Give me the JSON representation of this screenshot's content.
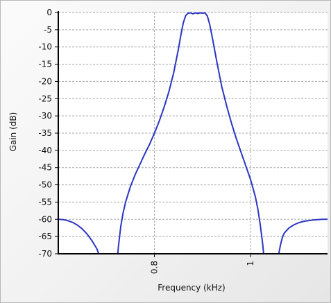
{
  "chart_data": {
    "type": "line",
    "title": "",
    "xlabel": "Frequency (kHz)",
    "ylabel": "Gain (dB)",
    "xlim": [
      0.6,
      1.16
    ],
    "ylim": [
      -70,
      0
    ],
    "x_ticks": [
      0.8,
      1.0
    ],
    "x_tick_labels": [
      "0.8",
      "1"
    ],
    "y_ticks": [
      0,
      -5,
      -10,
      -15,
      -20,
      -25,
      -30,
      -35,
      -40,
      -45,
      -50,
      -55,
      -60,
      -65,
      -70
    ],
    "y_tick_labels": [
      "0",
      "-5",
      "-10",
      "-15",
      "-20",
      "-25",
      "-30",
      "-35",
      "-40",
      "-45",
      "-50",
      "-55",
      "-60",
      "-65",
      "-70"
    ],
    "grid": true,
    "legend": "none",
    "line_color": "#2b35c4",
    "series": [
      {
        "name": "",
        "segments": [
          {
            "x": [
              0.6,
              0.61,
              0.62,
              0.63,
              0.64,
              0.65,
              0.66,
              0.67,
              0.68,
              0.685,
              0.69,
              0.695,
              0.698
            ],
            "y": [
              -60.0,
              -60.1,
              -60.4,
              -60.9,
              -61.7,
              -62.8,
              -64.3,
              -66.2,
              -68.5,
              -70.3,
              -72.5,
              -75.5,
              -78.0
            ]
          },
          {
            "x": [
              0.718,
              0.72,
              0.725,
              0.73,
              0.735,
              0.74,
              0.75,
              0.76,
              0.77,
              0.78,
              0.79,
              0.8,
              0.81,
              0.82,
              0.83,
              0.84,
              0.85,
              0.855,
              0.86,
              0.865,
              0.87,
              0.875,
              0.88,
              0.885,
              0.89,
              0.895,
              0.9,
              0.905,
              0.91,
              0.915,
              0.92,
              0.93,
              0.94,
              0.95,
              0.96,
              0.97,
              0.98,
              0.99,
              1.0,
              1.01,
              1.015,
              1.02,
              1.025,
              1.03,
              1.032
            ],
            "y": [
              -80.0,
              -76.0,
              -68.0,
              -62.0,
              -58.0,
              -55.0,
              -50.5,
              -47.0,
              -44.0,
              -41.0,
              -38.2,
              -35.0,
              -31.5,
              -27.5,
              -23.0,
              -17.5,
              -10.5,
              -6.5,
              -3.0,
              -0.9,
              -0.2,
              -0.1,
              -0.4,
              -0.1,
              -0.3,
              -0.1,
              -0.2,
              -0.1,
              -1.0,
              -3.5,
              -7.0,
              -14.5,
              -21.5,
              -27.0,
              -32.0,
              -36.5,
              -40.5,
              -44.5,
              -48.5,
              -53.5,
              -57.0,
              -61.5,
              -67.0,
              -74.0,
              -78.0
            ]
          },
          {
            "x": [
              1.052,
              1.054,
              1.058,
              1.062,
              1.066,
              1.07,
              1.08,
              1.09,
              1.1,
              1.11,
              1.12,
              1.13,
              1.14,
              1.15,
              1.16
            ],
            "y": [
              -78.0,
              -75.0,
              -70.5,
              -67.5,
              -65.3,
              -64.0,
              -62.5,
              -61.6,
              -61.0,
              -60.6,
              -60.4,
              -60.2,
              -60.1,
              -60.0,
              -60.0
            ]
          }
        ]
      }
    ]
  }
}
